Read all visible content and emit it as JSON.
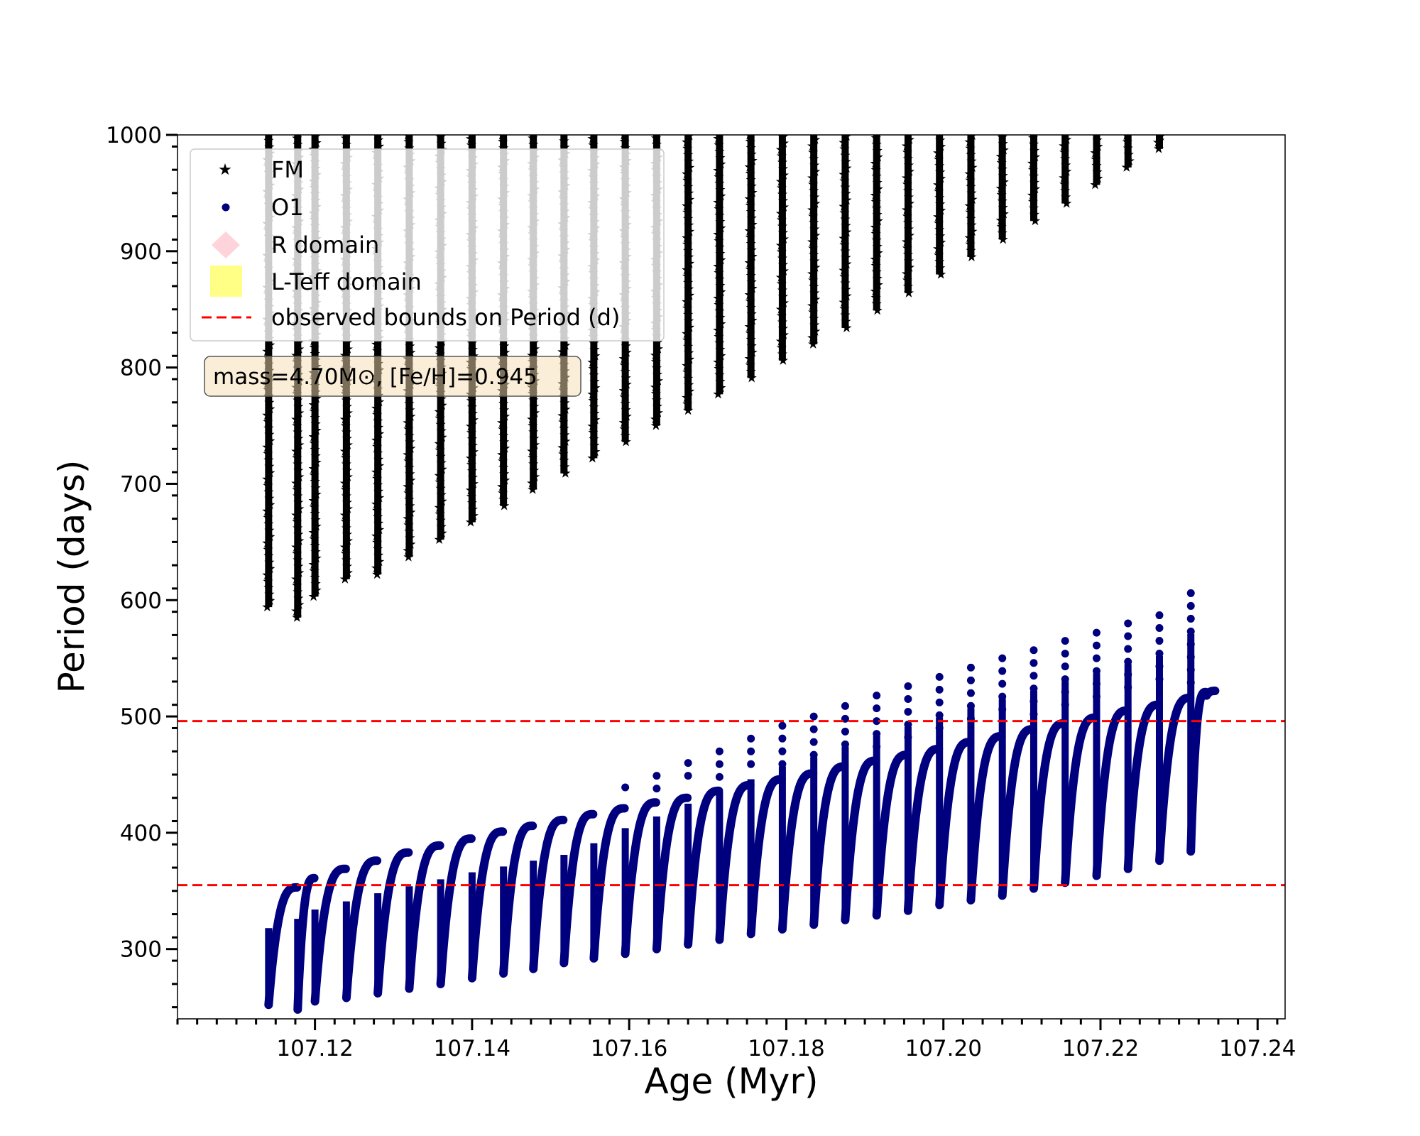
{
  "chart_data": {
    "type": "scatter",
    "xlabel": "Age (Myr)",
    "ylabel": "Period (days)",
    "xlim": [
      107.1025,
      107.2435
    ],
    "ylim": [
      240,
      1000
    ],
    "xticks": [
      "107.12",
      "107.14",
      "107.16",
      "107.18",
      "107.20",
      "107.22",
      "107.24"
    ],
    "xtick_values": [
      107.12,
      107.14,
      107.16,
      107.18,
      107.2,
      107.22,
      107.24
    ],
    "yticks": [
      "300",
      "400",
      "500",
      "600",
      "700",
      "800",
      "900",
      "1000"
    ],
    "ytick_values": [
      300,
      400,
      500,
      600,
      700,
      800,
      900,
      1000
    ],
    "annotation": "mass=4.70M⊙, [Fe/H]=0.945",
    "legend": {
      "location": "upper left",
      "entries": [
        {
          "label": "FM",
          "marker": "star",
          "color": "#000000"
        },
        {
          "label": "O1",
          "marker": "circle",
          "color": "#00007f"
        },
        {
          "label": "R domain",
          "marker": "diamond",
          "color": "#ffc0cb"
        },
        {
          "label": "L-Teff domain",
          "marker": "square",
          "color": "#ffff66"
        },
        {
          "label": "observed bounds on Period (d)",
          "marker": "dashed-line",
          "color": "#ff0000"
        }
      ]
    },
    "hlines": [
      {
        "name": "observed bounds on Period (d)",
        "y": 355,
        "color": "#ff0000",
        "style": "dashed"
      },
      {
        "name": "observed bounds on Period (d)",
        "y": 496,
        "color": "#ff0000",
        "style": "dashed"
      }
    ],
    "series": [
      {
        "name": "FM",
        "marker": "star",
        "color": "#000000",
        "note_points": "each pulse is a vertical band of points from low to high period",
        "pulses": [
          {
            "x": 107.1141,
            "low": 594,
            "high": 1000
          },
          {
            "x": 107.1178,
            "low": 585,
            "high": 1000
          },
          {
            "x": 107.12,
            "low": 603,
            "high": 1000
          },
          {
            "x": 107.124,
            "low": 618,
            "high": 1000
          },
          {
            "x": 107.128,
            "low": 622,
            "high": 1000
          },
          {
            "x": 107.132,
            "low": 637,
            "high": 1000
          },
          {
            "x": 107.136,
            "low": 652,
            "high": 1000
          },
          {
            "x": 107.14,
            "low": 667,
            "high": 1000
          },
          {
            "x": 107.144,
            "low": 681,
            "high": 1000
          },
          {
            "x": 107.1478,
            "low": 695,
            "high": 1000
          },
          {
            "x": 107.1517,
            "low": 709,
            "high": 1000
          },
          {
            "x": 107.1555,
            "low": 722,
            "high": 1000
          },
          {
            "x": 107.1595,
            "low": 736,
            "high": 1000
          },
          {
            "x": 107.1635,
            "low": 750,
            "high": 1000
          },
          {
            "x": 107.1675,
            "low": 763,
            "high": 1000
          },
          {
            "x": 107.1715,
            "low": 777,
            "high": 1000
          },
          {
            "x": 107.1755,
            "low": 791,
            "high": 1000
          },
          {
            "x": 107.1795,
            "low": 806,
            "high": 1000
          },
          {
            "x": 107.1835,
            "low": 820,
            "high": 1000
          },
          {
            "x": 107.1875,
            "low": 834,
            "high": 1000
          },
          {
            "x": 107.1915,
            "low": 849,
            "high": 1000
          },
          {
            "x": 107.1955,
            "low": 864,
            "high": 1000
          },
          {
            "x": 107.1995,
            "low": 880,
            "high": 1000
          },
          {
            "x": 107.2035,
            "low": 895,
            "high": 1000
          },
          {
            "x": 107.2075,
            "low": 910,
            "high": 1000
          },
          {
            "x": 107.2115,
            "low": 926,
            "high": 1000
          },
          {
            "x": 107.2155,
            "low": 941,
            "high": 1000
          },
          {
            "x": 107.2195,
            "low": 957,
            "high": 1000
          },
          {
            "x": 107.2235,
            "low": 972,
            "high": 1000
          },
          {
            "x": 107.2275,
            "low": 988,
            "high": 1000
          }
        ]
      },
      {
        "name": "O1",
        "marker": "circle",
        "color": "#00007f",
        "note_points": "sawtooth: each pulse drops to low at x then rises to high just before next pulse; spike is the isolated maximum",
        "pulses": [
          {
            "x": 107.1141,
            "low": 252,
            "high": 353,
            "spike": 323
          },
          {
            "x": 107.1178,
            "low": 248,
            "high": 361,
            "spike": 313
          },
          {
            "x": 107.12,
            "low": 255,
            "high": 369,
            "spike": 321
          },
          {
            "x": 107.124,
            "low": 258,
            "high": 376,
            "spike": 341
          },
          {
            "x": 107.128,
            "low": 262,
            "high": 383,
            "spike": 361
          },
          {
            "x": 107.132,
            "low": 266,
            "high": 389,
            "spike": 381
          },
          {
            "x": 107.136,
            "low": 270,
            "high": 395,
            "spike": 386
          },
          {
            "x": 107.14,
            "low": 275,
            "high": 401,
            "spike": 392
          },
          {
            "x": 107.144,
            "low": 279,
            "high": 406,
            "spike": 400
          },
          {
            "x": 107.1478,
            "low": 283,
            "high": 411,
            "spike": 406
          },
          {
            "x": 107.1517,
            "low": 288,
            "high": 416,
            "spike": 412
          },
          {
            "x": 107.1555,
            "low": 292,
            "high": 421,
            "spike": 426
          },
          {
            "x": 107.1595,
            "low": 296,
            "high": 426,
            "spike": 439
          },
          {
            "x": 107.1635,
            "low": 300,
            "high": 430,
            "spike": 449
          },
          {
            "x": 107.1675,
            "low": 304,
            "high": 436,
            "spike": 460
          },
          {
            "x": 107.1715,
            "low": 308,
            "high": 441,
            "spike": 470
          },
          {
            "x": 107.1755,
            "low": 313,
            "high": 446,
            "spike": 481
          },
          {
            "x": 107.1795,
            "low": 317,
            "high": 451,
            "spike": 492
          },
          {
            "x": 107.1835,
            "low": 321,
            "high": 457,
            "spike": 500
          },
          {
            "x": 107.1875,
            "low": 325,
            "high": 462,
            "spike": 509
          },
          {
            "x": 107.1915,
            "low": 329,
            "high": 467,
            "spike": 518
          },
          {
            "x": 107.1955,
            "low": 333,
            "high": 472,
            "spike": 526
          },
          {
            "x": 107.1995,
            "low": 338,
            "high": 478,
            "spike": 534
          },
          {
            "x": 107.2035,
            "low": 342,
            "high": 483,
            "spike": 542
          },
          {
            "x": 107.2075,
            "low": 346,
            "high": 489,
            "spike": 550
          },
          {
            "x": 107.2115,
            "low": 352,
            "high": 494,
            "spike": 557
          },
          {
            "x": 107.2155,
            "low": 357,
            "high": 499,
            "spike": 565
          },
          {
            "x": 107.2195,
            "low": 363,
            "high": 505,
            "spike": 572
          },
          {
            "x": 107.2235,
            "low": 369,
            "high": 510,
            "spike": 580
          },
          {
            "x": 107.2275,
            "low": 376,
            "high": 516,
            "spike": 587
          },
          {
            "x": 107.2315,
            "low": 384,
            "high": 521,
            "spike": 606
          },
          {
            "x": 107.2335,
            "low": 518,
            "high": 522,
            "spike": 522
          }
        ]
      }
    ]
  }
}
